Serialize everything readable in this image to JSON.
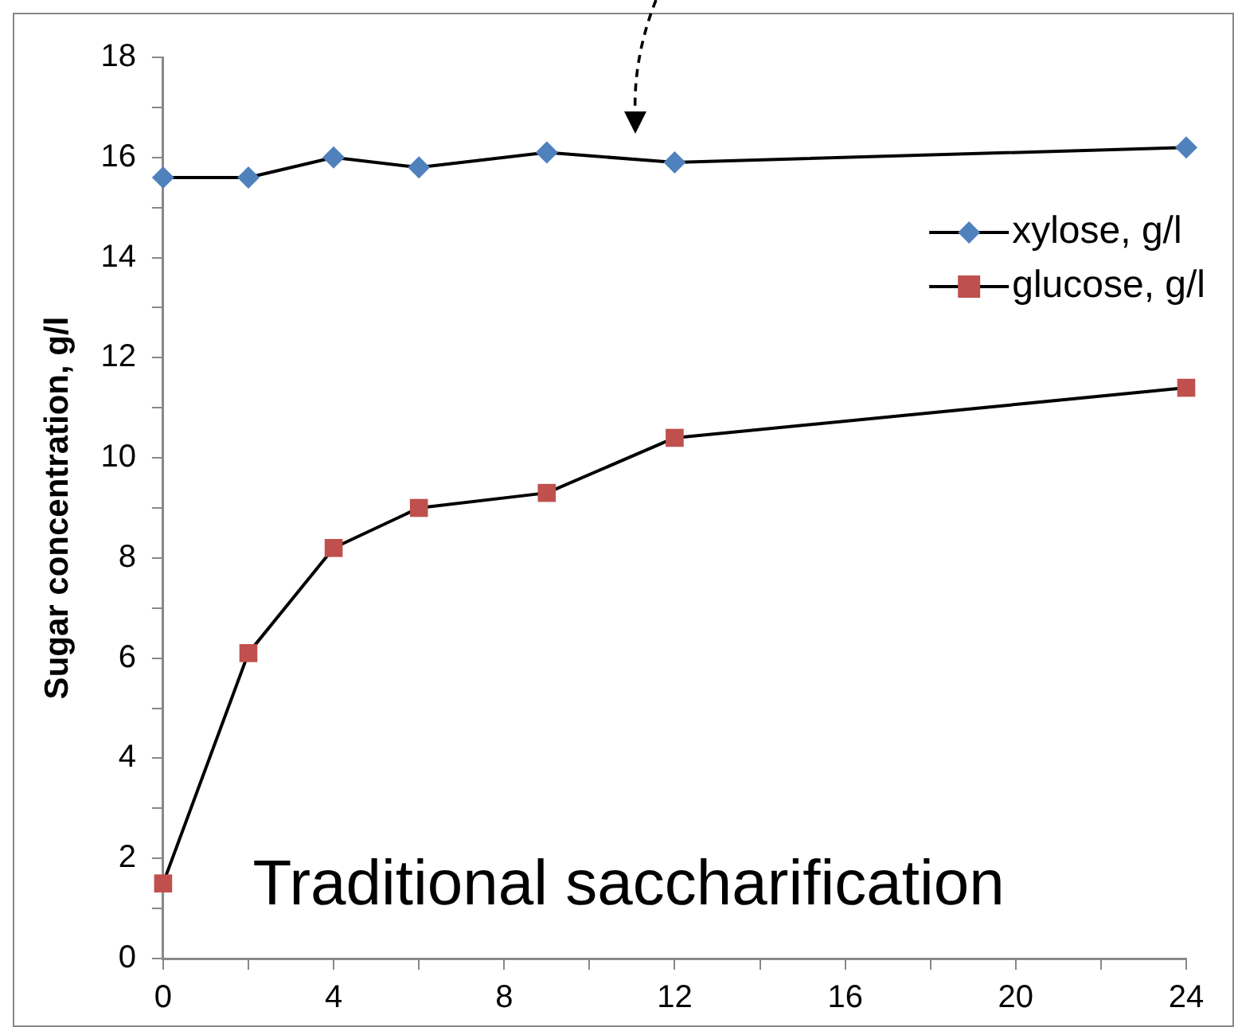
{
  "chart_data": {
    "type": "line",
    "ylabel": "Sugar concentration, g/l",
    "x": [
      0,
      2,
      4,
      6,
      9,
      12,
      24
    ],
    "series": [
      {
        "name": "xylose, g/l",
        "color": "#4f81bd",
        "marker": "diamond",
        "values": [
          15.6,
          15.6,
          16.0,
          15.8,
          16.1,
          15.9,
          16.2
        ]
      },
      {
        "name": "glucose, g/l",
        "color": "#c0504d",
        "marker": "square",
        "values": [
          1.5,
          6.1,
          8.2,
          9.0,
          9.3,
          10.4,
          11.4
        ]
      }
    ],
    "xlim": [
      0,
      24
    ],
    "xticks": [
      0,
      {
        "value": 2,
        "label": null
      },
      4,
      {
        "value": 6,
        "label": null
      },
      8,
      {
        "value": 10,
        "label": null
      },
      12,
      {
        "value": 14,
        "label": null
      },
      16,
      {
        "value": 18,
        "label": null
      },
      20,
      {
        "value": 22,
        "label": null
      },
      24
    ],
    "ylim": [
      0,
      18
    ],
    "yticks": [
      0,
      {
        "value": 1,
        "label": null
      },
      2,
      {
        "value": 3,
        "label": null
      },
      4,
      {
        "value": 5,
        "label": null
      },
      6,
      {
        "value": 7,
        "label": null
      },
      8,
      {
        "value": 9,
        "label": null
      },
      10,
      {
        "value": 11,
        "label": null
      },
      12,
      {
        "value": 13,
        "label": null
      },
      14,
      {
        "value": 15,
        "label": null
      },
      16,
      {
        "value": 17,
        "label": null
      },
      18
    ],
    "grid": false,
    "legend": "top right",
    "line_style": "solid",
    "annotations": [
      "Traditional saccharification"
    ]
  }
}
